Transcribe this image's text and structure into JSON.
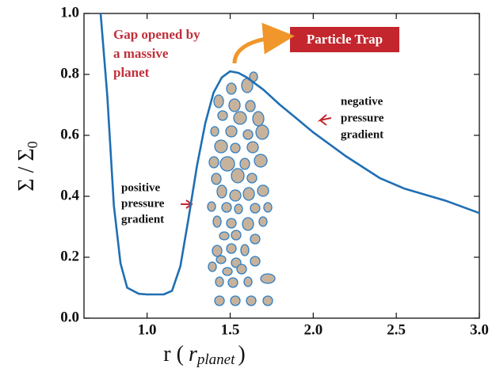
{
  "chart_data": {
    "type": "line",
    "xlabel": [
      "r (",
      "r",
      "planet",
      ")"
    ],
    "ylabel": [
      "Σ / Σ",
      "0"
    ],
    "x": [
      0.72,
      0.76,
      0.8,
      0.84,
      0.88,
      0.95,
      1.0,
      1.1,
      1.15,
      1.2,
      1.25,
      1.3,
      1.35,
      1.4,
      1.45,
      1.5,
      1.55,
      1.6,
      1.7,
      1.8,
      1.9,
      2.0,
      2.2,
      2.4,
      2.55,
      2.8,
      3.0
    ],
    "series": [
      {
        "name": "Σ",
        "color": "#1f6fb4",
        "values": [
          1.0,
          0.73,
          0.37,
          0.18,
          0.1,
          0.08,
          0.078,
          0.078,
          0.09,
          0.17,
          0.33,
          0.5,
          0.64,
          0.74,
          0.79,
          0.81,
          0.805,
          0.79,
          0.75,
          0.7,
          0.655,
          0.61,
          0.53,
          0.46,
          0.425,
          0.385,
          0.345
        ]
      }
    ],
    "xlim": [
      0.62,
      3.0
    ],
    "ylim": [
      0,
      1.0
    ],
    "xticks": [
      {
        "value": 1.0,
        "label": "1.0"
      },
      1.5,
      {
        "value": 2.0,
        "label": "2.0"
      },
      2.5,
      {
        "value": 3.0,
        "label": "3.0"
      }
    ],
    "yticks": [
      {
        "value": 0,
        "label": "0.0"
      },
      0.2,
      0.4,
      0.6,
      0.8,
      {
        "value": 1.0,
        "label": "1.0"
      }
    ],
    "annotations": {
      "gap": [
        "Gap opened by",
        "a massive",
        "planet"
      ],
      "trap": "Particle Trap",
      "negative": [
        "negative",
        "pressure",
        "gradient"
      ],
      "positive": [
        "positive",
        "pressure",
        "gradient"
      ]
    }
  }
}
